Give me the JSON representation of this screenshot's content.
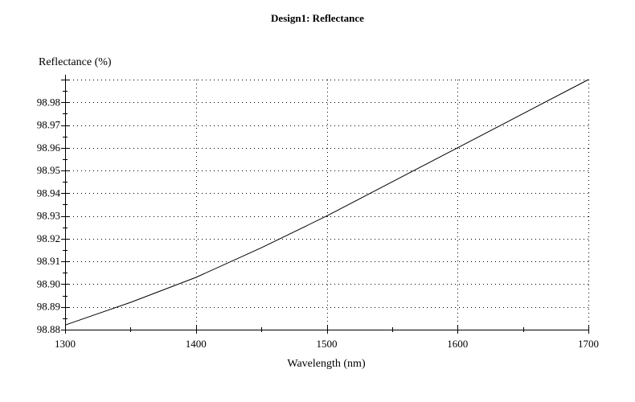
{
  "chart_data": {
    "type": "line",
    "title": "Design1: Reflectance",
    "xlabel": "Wavelength (nm)",
    "ylabel": "Reflectance (%)",
    "xlim": [
      1300,
      1700
    ],
    "ylim": [
      98.88,
      98.99
    ],
    "xticks": [
      1300,
      1400,
      1500,
      1600,
      1700
    ],
    "xtick_labels": [
      "1300",
      "1400",
      "1500",
      "1600",
      "1700"
    ],
    "yticks": [
      98.88,
      98.89,
      98.9,
      98.91,
      98.92,
      98.93,
      98.94,
      98.95,
      98.96,
      98.97,
      98.98
    ],
    "ytick_labels": [
      "98.88",
      "98.89",
      "98.90",
      "98.91",
      "98.92",
      "98.93",
      "98.94",
      "98.95",
      "98.96",
      "98.97",
      "98.98"
    ],
    "grid": true,
    "series": [
      {
        "x": [
          1300,
          1350,
          1400,
          1450,
          1500,
          1550,
          1600,
          1650,
          1700
        ],
        "values": [
          98.882,
          98.892,
          98.903,
          98.916,
          98.93,
          98.945,
          98.96,
          98.975,
          98.99
        ]
      }
    ]
  }
}
